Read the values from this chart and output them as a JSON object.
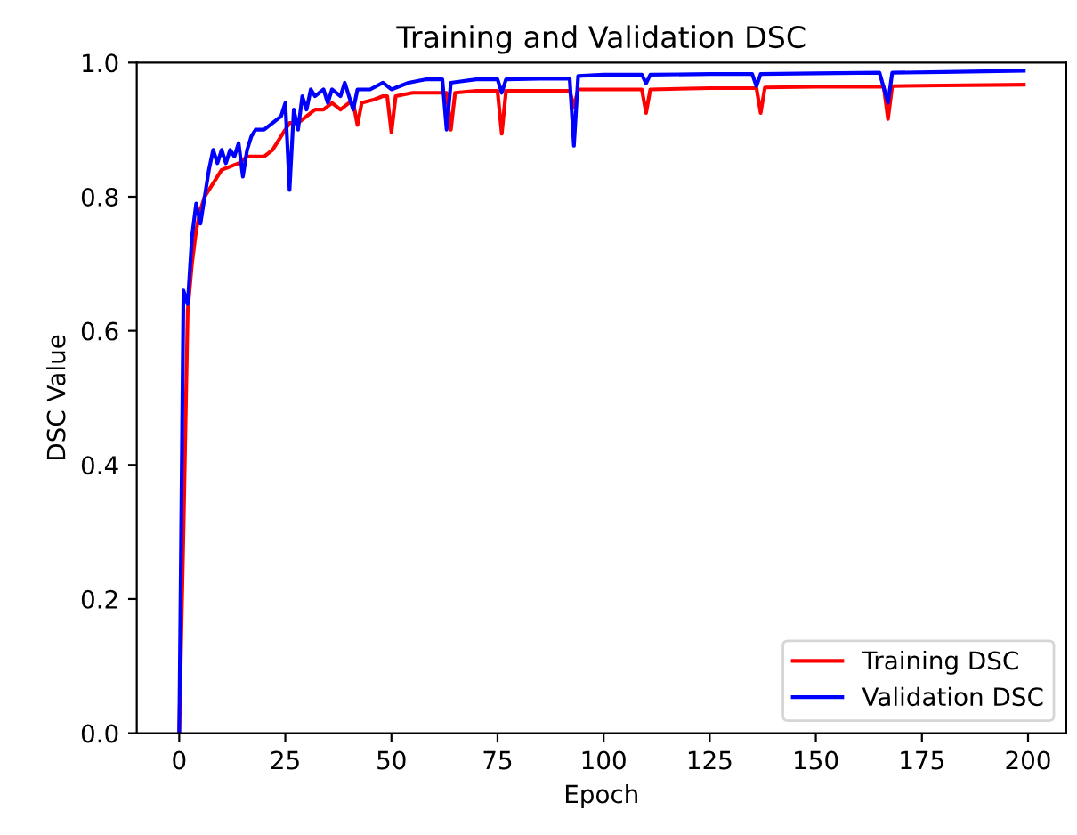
{
  "chart_data": {
    "type": "line",
    "title": "Training and Validation DSC",
    "xlabel": "Epoch",
    "ylabel": "DSC Value",
    "xlim": [
      -10,
      209
    ],
    "xticks": [
      0,
      25,
      50,
      75,
      100,
      125,
      150,
      175,
      200
    ],
    "ylim": [
      0,
      1.0
    ],
    "yticks": [
      {
        "value": 0,
        "label": "0.0"
      },
      {
        "value": 0.2,
        "label": "0.2"
      },
      {
        "value": 0.4,
        "label": "0.4"
      },
      {
        "value": 0.6,
        "label": "0.6"
      },
      {
        "value": 0.8,
        "label": "0.8"
      },
      {
        "value": 1.0,
        "label": "1.0"
      }
    ],
    "grid": false,
    "legend": "bottom right",
    "marker": "none",
    "line_style": "solid",
    "series": [
      {
        "name": "Training DSC",
        "color": "#ff0000",
        "x": [
          0,
          1,
          2,
          3,
          4,
          5,
          6,
          8,
          10,
          12,
          14,
          16,
          18,
          20,
          22,
          24,
          26,
          28,
          30,
          32,
          34,
          36,
          38,
          40,
          41,
          42,
          43,
          46,
          48,
          49,
          50,
          51,
          55,
          63,
          64,
          65,
          70,
          75,
          76,
          77,
          85,
          92,
          93,
          94,
          100,
          109,
          110,
          111,
          125,
          136,
          137,
          138,
          150,
          166,
          167,
          168,
          180,
          199
        ],
        "values": [
          0,
          0.3,
          0.63,
          0.7,
          0.75,
          0.78,
          0.8,
          0.82,
          0.84,
          0.845,
          0.85,
          0.86,
          0.86,
          0.86,
          0.87,
          0.89,
          0.91,
          0.91,
          0.92,
          0.93,
          0.93,
          0.94,
          0.93,
          0.94,
          0.94,
          0.907,
          0.94,
          0.945,
          0.95,
          0.95,
          0.896,
          0.95,
          0.955,
          0.955,
          0.9,
          0.955,
          0.958,
          0.958,
          0.894,
          0.958,
          0.958,
          0.958,
          0.934,
          0.96,
          0.96,
          0.96,
          0.925,
          0.96,
          0.962,
          0.962,
          0.925,
          0.963,
          0.964,
          0.964,
          0.916,
          0.965,
          0.966,
          0.967
        ]
      },
      {
        "name": "Validation DSC",
        "color": "#0000ff",
        "x": [
          0,
          1,
          2,
          3,
          4,
          5,
          6,
          7,
          8,
          9,
          10,
          11,
          12,
          13,
          14,
          15,
          16,
          17,
          18,
          20,
          22,
          24,
          25,
          26,
          27,
          28,
          29,
          30,
          31,
          32,
          34,
          35,
          36,
          38,
          39,
          40,
          41,
          42,
          43,
          45,
          48,
          50,
          54,
          58,
          62,
          63,
          64,
          70,
          75,
          76,
          77,
          85,
          92,
          93,
          94,
          100,
          109,
          110,
          111,
          125,
          135,
          136,
          137,
          150,
          165,
          167,
          168,
          180,
          199
        ],
        "values": [
          0,
          0.66,
          0.64,
          0.74,
          0.79,
          0.76,
          0.8,
          0.84,
          0.87,
          0.85,
          0.87,
          0.85,
          0.87,
          0.86,
          0.88,
          0.83,
          0.87,
          0.89,
          0.9,
          0.9,
          0.91,
          0.92,
          0.94,
          0.81,
          0.93,
          0.9,
          0.95,
          0.93,
          0.96,
          0.95,
          0.96,
          0.94,
          0.96,
          0.95,
          0.97,
          0.95,
          0.93,
          0.96,
          0.96,
          0.96,
          0.97,
          0.96,
          0.97,
          0.975,
          0.975,
          0.9,
          0.97,
          0.975,
          0.975,
          0.955,
          0.975,
          0.976,
          0.976,
          0.876,
          0.98,
          0.982,
          0.982,
          0.969,
          0.982,
          0.983,
          0.983,
          0.965,
          0.983,
          0.984,
          0.985,
          0.94,
          0.985,
          0.986,
          0.988
        ]
      }
    ]
  }
}
